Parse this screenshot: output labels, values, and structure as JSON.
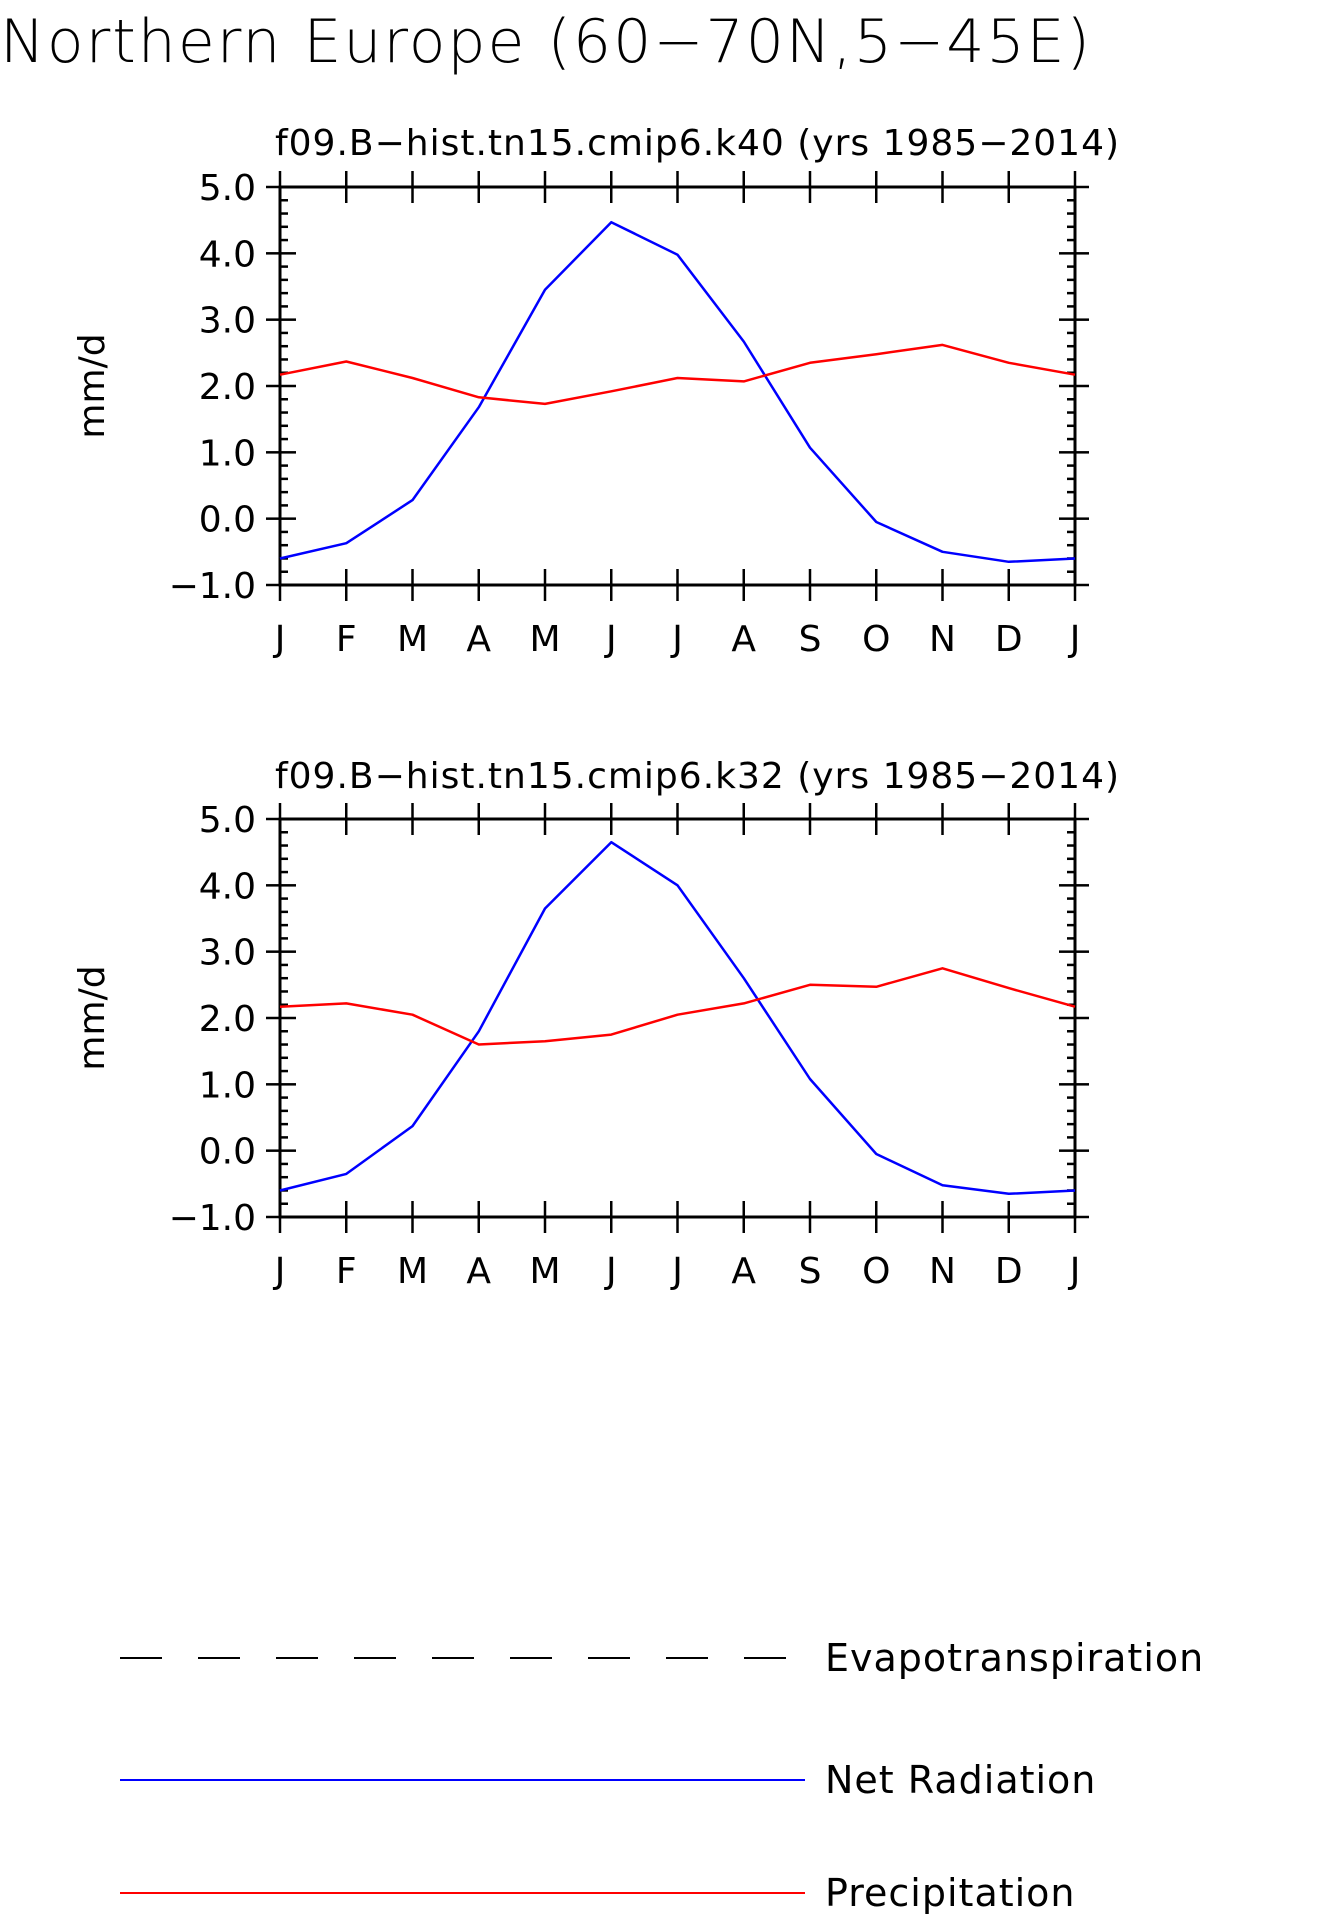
{
  "title": "Northern Europe (60−70N,5−45E)",
  "chart_data": [
    {
      "type": "line",
      "title": "f09.B−hist.tn15.cmip6.k40 (yrs 1985−2014)",
      "xlabel": "",
      "ylabel": "mm/d",
      "categories": [
        "J",
        "F",
        "M",
        "A",
        "M",
        "J",
        "J",
        "A",
        "S",
        "O",
        "N",
        "D",
        "J"
      ],
      "ylim": [
        -1.0,
        5.0
      ],
      "yticks": [
        "5.0",
        "4.0",
        "3.0",
        "2.0",
        "1.0",
        "0.0",
        "−1.0"
      ],
      "series": [
        {
          "name": "Net Radiation",
          "color": "#0000ff",
          "values": [
            -0.6,
            -0.37,
            0.28,
            1.68,
            3.45,
            4.47,
            3.98,
            2.67,
            1.07,
            -0.05,
            -0.5,
            -0.65,
            -0.6
          ]
        },
        {
          "name": "Precipitation",
          "color": "#ff0000",
          "values": [
            2.17,
            2.37,
            2.12,
            1.83,
            1.73,
            1.92,
            2.12,
            2.07,
            2.35,
            2.48,
            2.62,
            2.35,
            2.17
          ]
        }
      ]
    },
    {
      "type": "line",
      "title": "f09.B−hist.tn15.cmip6.k32 (yrs 1985−2014)",
      "xlabel": "",
      "ylabel": "mm/d",
      "categories": [
        "J",
        "F",
        "M",
        "A",
        "M",
        "J",
        "J",
        "A",
        "S",
        "O",
        "N",
        "D",
        "J"
      ],
      "ylim": [
        -1.0,
        5.0
      ],
      "yticks": [
        "5.0",
        "4.0",
        "3.0",
        "2.0",
        "1.0",
        "0.0",
        "−1.0"
      ],
      "series": [
        {
          "name": "Net Radiation",
          "color": "#0000ff",
          "values": [
            -0.6,
            -0.35,
            0.37,
            1.8,
            3.65,
            4.65,
            4.0,
            2.6,
            1.08,
            -0.05,
            -0.52,
            -0.65,
            -0.6
          ]
        },
        {
          "name": "Precipitation",
          "color": "#ff0000",
          "values": [
            2.17,
            2.22,
            2.05,
            1.6,
            1.65,
            1.75,
            2.05,
            2.22,
            2.5,
            2.47,
            2.75,
            2.45,
            2.17
          ]
        }
      ]
    }
  ],
  "legend": [
    {
      "label": "Evapotranspiration",
      "color": "#000000",
      "style": "dashed"
    },
    {
      "label": "Net Radiation",
      "color": "#0000ff",
      "style": "solid"
    },
    {
      "label": "Precipitation",
      "color": "#ff0000",
      "style": "solid"
    }
  ]
}
